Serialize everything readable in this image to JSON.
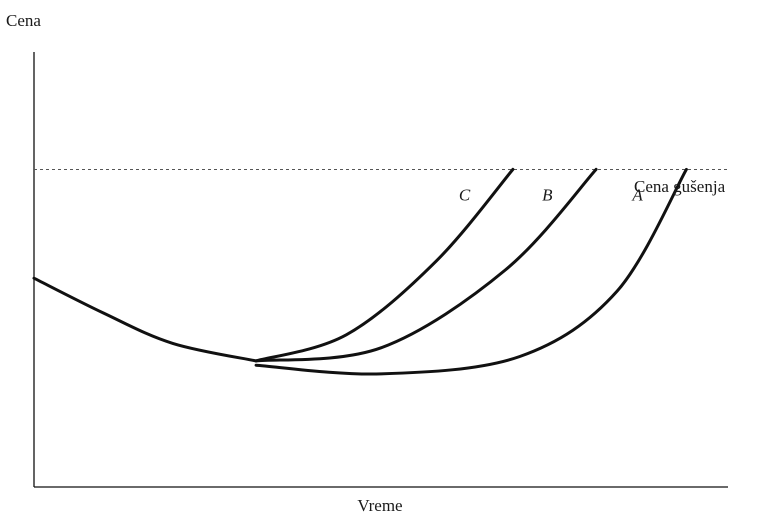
{
  "chart_data": {
    "type": "line",
    "ylabel": "Cena",
    "xlabel": "Vreme",
    "reference_line": {
      "label": "Cena gušenja",
      "y": 0.73
    },
    "xlim": [
      0,
      1
    ],
    "ylim": [
      0,
      1
    ],
    "grid": false,
    "series": [
      {
        "name": "C",
        "x": [
          0.32,
          0.45,
          0.58,
          0.69
        ],
        "y": [
          0.29,
          0.35,
          0.52,
          0.73
        ]
      },
      {
        "name": "B",
        "x": [
          0.32,
          0.5,
          0.68,
          0.81
        ],
        "y": [
          0.29,
          0.32,
          0.5,
          0.73
        ]
      },
      {
        "name": "A",
        "x": [
          0.32,
          0.5,
          0.7,
          0.84,
          0.94
        ],
        "y": [
          0.28,
          0.26,
          0.3,
          0.45,
          0.73
        ]
      }
    ],
    "common_segment": {
      "x": [
        0,
        0.1,
        0.2,
        0.32
      ],
      "y": [
        0.48,
        0.4,
        0.33,
        0.29
      ]
    }
  }
}
